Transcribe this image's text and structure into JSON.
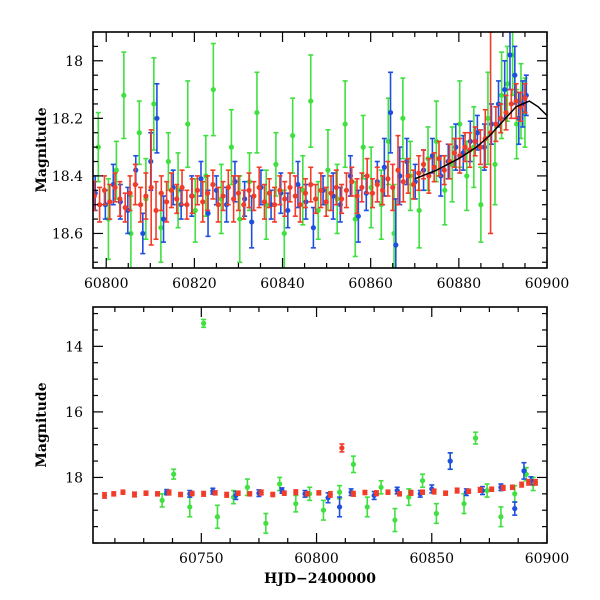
{
  "colors": {
    "blue": "#1f4fe0",
    "green": "#3fe03f",
    "red": "#f03c28",
    "model": "#000000"
  },
  "chart_data": [
    {
      "type": "scatter",
      "title": "",
      "xlabel": "",
      "ylabel": "Magnitude",
      "xlim": [
        60797,
        60900
      ],
      "ylim": [
        18.72,
        17.9
      ],
      "y_inverted": true,
      "xticks": [
        60800,
        60820,
        60840,
        60860,
        60880,
        60900
      ],
      "yticks": [
        18,
        18.2,
        18.4,
        18.6
      ],
      "xtick_labels": [
        "60800",
        "60820",
        "60840",
        "60860",
        "60880",
        "60900"
      ],
      "ytick_labels": [
        "18",
        "18.2",
        "18.4",
        "18.6"
      ],
      "grid": false,
      "series": [
        {
          "color": "blue",
          "x": [
            60797.5,
            60799.8,
            60801.6,
            60803.2,
            60804.9,
            60806.7,
            60808.3,
            60810.1,
            60811.5,
            60813.0,
            60815.2,
            60817.0,
            60819.4,
            60821.5,
            60823.1,
            60825.0,
            60827.3,
            60829.2,
            60831.4,
            60833.0,
            60835.1,
            60837.4,
            60839.6,
            60841.2,
            60843.5,
            60845.3,
            60847.0,
            60849.2,
            60851.5,
            60853.1,
            60855.4,
            60857.2,
            60859.0,
            60861.5,
            60863.1,
            60864.5,
            60865.7,
            60866.6,
            60868.2,
            60870.1,
            60872.0,
            60874.0,
            60875.9,
            60877.6,
            60879.3,
            60881.0,
            60882.6,
            60884.2,
            60885.8,
            60887.4,
            60889.0,
            60890.4,
            60891.6,
            60892.7,
            60893.6,
            60894.5,
            60895.3
          ],
          "y": [
            18.46,
            18.5,
            18.43,
            18.49,
            18.52,
            18.38,
            18.6,
            18.35,
            18.2,
            18.55,
            18.44,
            18.5,
            18.47,
            18.41,
            18.53,
            18.45,
            18.5,
            18.42,
            18.48,
            18.56,
            18.44,
            18.5,
            18.46,
            18.52,
            18.43,
            18.49,
            18.58,
            18.45,
            18.47,
            18.5,
            18.4,
            18.54,
            18.46,
            18.42,
            18.37,
            18.18,
            18.64,
            18.4,
            18.35,
            18.42,
            18.38,
            18.33,
            18.4,
            18.35,
            18.3,
            18.32,
            18.28,
            18.25,
            18.3,
            18.22,
            18.15,
            18.1,
            17.98,
            18.05,
            18.2,
            18.15,
            18.12
          ],
          "yerr": [
            0.06,
            0.05,
            0.07,
            0.06,
            0.08,
            0.05,
            0.07,
            0.1,
            0.12,
            0.08,
            0.06,
            0.05,
            0.07,
            0.06,
            0.08,
            0.05,
            0.06,
            0.07,
            0.06,
            0.09,
            0.06,
            0.05,
            0.07,
            0.06,
            0.08,
            0.06,
            0.07,
            0.05,
            0.08,
            0.06,
            0.07,
            0.09,
            0.06,
            0.07,
            0.1,
            0.14,
            0.16,
            0.1,
            0.08,
            0.06,
            0.07,
            0.06,
            0.07,
            0.06,
            0.08,
            0.06,
            0.07,
            0.06,
            0.08,
            0.07,
            0.08,
            0.1,
            0.12,
            0.1,
            0.09,
            0.08,
            0.07
          ]
        },
        {
          "color": "green",
          "x": [
            60798.2,
            60800.5,
            60802.3,
            60804.0,
            60805.6,
            60807.5,
            60809.0,
            60810.8,
            60812.4,
            60814.1,
            60816.3,
            60818.5,
            60820.2,
            60822.6,
            60824.3,
            60826.1,
            60828.4,
            60830.3,
            60832.5,
            60834.2,
            60836.3,
            60838.5,
            60840.4,
            60842.3,
            60844.6,
            60846.4,
            60848.1,
            60850.3,
            60852.4,
            60854.2,
            60856.5,
            60858.3,
            60860.1,
            60862.4,
            60864.0,
            60865.3,
            60867.3,
            60869.0,
            60871.0,
            60873.0,
            60874.9,
            60876.8,
            60878.5,
            60880.2,
            60881.8,
            60883.4,
            60885.0,
            60886.6,
            60888.2,
            60889.7,
            60891.0,
            60892.2,
            60893.1,
            60894.1,
            60895.0
          ],
          "y": [
            18.3,
            18.55,
            18.38,
            18.12,
            18.6,
            18.25,
            18.48,
            18.15,
            18.58,
            18.35,
            18.45,
            18.22,
            18.52,
            18.4,
            18.1,
            18.48,
            18.3,
            18.55,
            18.42,
            18.18,
            18.5,
            18.36,
            18.6,
            18.26,
            18.45,
            18.14,
            18.52,
            18.38,
            18.48,
            18.22,
            18.55,
            18.3,
            18.44,
            18.5,
            18.28,
            18.6,
            18.2,
            18.4,
            18.52,
            18.34,
            18.28,
            18.45,
            18.36,
            18.22,
            18.4,
            18.3,
            18.5,
            18.2,
            18.36,
            18.12,
            18.08,
            17.98,
            18.22,
            18.14,
            18.18
          ],
          "yerr": [
            0.12,
            0.14,
            0.1,
            0.15,
            0.13,
            0.11,
            0.14,
            0.16,
            0.12,
            0.1,
            0.13,
            0.15,
            0.11,
            0.14,
            0.16,
            0.12,
            0.13,
            0.15,
            0.1,
            0.14,
            0.12,
            0.11,
            0.15,
            0.13,
            0.12,
            0.16,
            0.1,
            0.14,
            0.12,
            0.15,
            0.13,
            0.11,
            0.14,
            0.12,
            0.15,
            0.17,
            0.14,
            0.12,
            0.13,
            0.11,
            0.14,
            0.12,
            0.13,
            0.15,
            0.12,
            0.14,
            0.13,
            0.16,
            0.14,
            0.15,
            0.13,
            0.14,
            0.12,
            0.13,
            0.12
          ]
        },
        {
          "color": "red",
          "x": [
            60797.3,
            60798.5,
            60799.6,
            60800.8,
            60802.0,
            60803.1,
            60804.3,
            60805.4,
            60806.6,
            60807.8,
            60809.0,
            60810.2,
            60811.3,
            60812.5,
            60813.7,
            60814.8,
            60816.0,
            60817.2,
            60818.3,
            60819.5,
            60820.7,
            60821.9,
            60823.0,
            60824.2,
            60825.4,
            60826.5,
            60827.7,
            60828.9,
            60830.0,
            60831.2,
            60832.4,
            60833.5,
            60834.7,
            60835.9,
            60837.0,
            60838.2,
            60839.4,
            60840.5,
            60841.7,
            60842.9,
            60844.0,
            60845.2,
            60846.4,
            60847.5,
            60848.7,
            60849.9,
            60851.0,
            60852.2,
            60853.4,
            60854.5,
            60855.7,
            60856.9,
            60858.0,
            60859.2,
            60860.4,
            60861.5,
            60862.7,
            60863.9,
            60865.0,
            60866.2,
            60867.4,
            60868.5,
            60869.7,
            60870.9,
            60872.0,
            60873.2,
            60874.4,
            60875.5,
            60876.7,
            60877.9,
            60879.0,
            60880.2,
            60881.4,
            60882.5,
            60883.7,
            60884.9,
            60886.0,
            60887.2,
            60888.4,
            60889.5,
            60890.7,
            60891.9,
            60893.0,
            60894.0,
            60895.0
          ],
          "y": [
            18.47,
            18.5,
            18.45,
            18.49,
            18.44,
            18.48,
            18.51,
            18.46,
            18.43,
            18.5,
            18.47,
            18.44,
            18.52,
            18.46,
            18.49,
            18.45,
            18.48,
            18.44,
            18.5,
            18.47,
            18.45,
            18.49,
            18.46,
            18.43,
            18.5,
            18.47,
            18.44,
            18.48,
            18.46,
            18.5,
            18.45,
            18.47,
            18.44,
            18.49,
            18.46,
            18.5,
            18.45,
            18.48,
            18.44,
            18.47,
            18.5,
            18.46,
            18.43,
            18.48,
            18.45,
            18.49,
            18.46,
            18.44,
            18.48,
            18.45,
            18.42,
            18.47,
            18.44,
            18.4,
            18.46,
            18.43,
            18.45,
            18.41,
            18.44,
            18.38,
            18.42,
            18.4,
            18.43,
            18.39,
            18.36,
            18.4,
            18.37,
            18.34,
            18.38,
            18.35,
            18.32,
            18.33,
            18.3,
            18.31,
            18.28,
            18.3,
            18.27,
            18.25,
            18.22,
            18.2,
            18.18,
            18.15,
            18.14,
            18.16,
            18.13
          ],
          "yerr": [
            0.05,
            0.06,
            0.05,
            0.06,
            0.05,
            0.06,
            0.05,
            0.06,
            0.07,
            0.06,
            0.08,
            0.2,
            0.1,
            0.06,
            0.07,
            0.06,
            0.05,
            0.06,
            0.05,
            0.06,
            0.05,
            0.07,
            0.06,
            0.05,
            0.06,
            0.05,
            0.06,
            0.08,
            0.06,
            0.05,
            0.06,
            0.05,
            0.07,
            0.06,
            0.05,
            0.06,
            0.05,
            0.06,
            0.05,
            0.07,
            0.06,
            0.05,
            0.06,
            0.05,
            0.06,
            0.05,
            0.06,
            0.06,
            0.05,
            0.06,
            0.05,
            0.06,
            0.05,
            0.06,
            0.05,
            0.06,
            0.05,
            0.06,
            0.08,
            0.12,
            0.07,
            0.06,
            0.05,
            0.06,
            0.05,
            0.06,
            0.05,
            0.06,
            0.05,
            0.06,
            0.05,
            0.06,
            0.05,
            0.06,
            0.05,
            0.06,
            0.1,
            0.35,
            0.06,
            0.05,
            0.06,
            0.05,
            0.06,
            0.05,
            0.05
          ]
        }
      ],
      "model_curve": {
        "x": [
          60870,
          60875,
          60880,
          60884,
          60887,
          60890,
          60893,
          60896,
          60898,
          60900
        ],
        "y": [
          18.41,
          18.38,
          18.34,
          18.3,
          18.26,
          18.21,
          18.16,
          18.14,
          18.16,
          18.19
        ]
      }
    },
    {
      "type": "scatter",
      "title": "",
      "xlabel": "HJD−2400000",
      "ylabel": "Magnitude",
      "xlim": [
        60703,
        60900
      ],
      "ylim": [
        20.0,
        12.8
      ],
      "y_inverted": true,
      "xticks": [
        60750,
        60800,
        60850,
        60900
      ],
      "yticks": [
        14,
        16,
        18
      ],
      "xtick_labels": [
        "60750",
        "60800",
        "60850",
        "60900"
      ],
      "ytick_labels": [
        "14",
        "16",
        "18"
      ],
      "grid": false,
      "series": [
        {
          "color": "blue",
          "x": [
            60735,
            60745,
            60755,
            60765,
            60775,
            60785,
            60795,
            60805,
            60810,
            60815,
            60825,
            60835,
            60845,
            60850,
            60858,
            60865,
            60872,
            60880,
            60886,
            60890,
            60893
          ],
          "y": [
            18.45,
            18.5,
            18.42,
            18.55,
            18.48,
            18.4,
            18.5,
            18.62,
            18.9,
            18.45,
            18.55,
            18.4,
            18.5,
            18.35,
            17.5,
            18.45,
            18.4,
            18.3,
            18.95,
            17.8,
            18.1
          ],
          "yerr": [
            0.08,
            0.1,
            0.09,
            0.12,
            0.1,
            0.08,
            0.1,
            0.15,
            0.3,
            0.1,
            0.12,
            0.1,
            0.1,
            0.12,
            0.25,
            0.1,
            0.12,
            0.1,
            0.2,
            0.25,
            0.12
          ]
        },
        {
          "color": "green",
          "x": [
            60733,
            60738,
            60745,
            60751,
            60757,
            60764,
            60770,
            60778,
            60784,
            60791,
            60797,
            60803,
            60810,
            60816,
            60822,
            60828,
            60834,
            60840,
            60846,
            60852,
            60858,
            60864,
            60869,
            60874,
            60880,
            60886,
            60891,
            60894
          ],
          "y": [
            18.7,
            17.9,
            18.9,
            13.3,
            19.2,
            18.6,
            18.3,
            19.4,
            18.2,
            18.8,
            18.5,
            19.0,
            18.45,
            17.6,
            18.9,
            18.3,
            19.3,
            18.6,
            18.1,
            19.1,
            17.5,
            18.8,
            16.8,
            18.4,
            19.2,
            18.5,
            17.9,
            18.2
          ],
          "yerr": [
            0.2,
            0.15,
            0.3,
            0.12,
            0.35,
            0.2,
            0.25,
            0.3,
            0.2,
            0.25,
            0.2,
            0.3,
            0.2,
            0.25,
            0.3,
            0.2,
            0.35,
            0.25,
            0.2,
            0.3,
            0.25,
            0.3,
            0.18,
            0.2,
            0.3,
            0.25,
            0.2,
            0.2
          ]
        },
        {
          "color": "red",
          "x": [
            60708,
            60712,
            60716,
            60721,
            60726,
            60731,
            60736,
            60741,
            60746,
            60751,
            60756,
            60761,
            60766,
            60771,
            60776,
            60781,
            60786,
            60791,
            60796,
            60801,
            60806,
            60811,
            60816,
            60821,
            60826,
            60831,
            60836,
            60841,
            60846,
            60851,
            60856,
            60861,
            60866,
            60871,
            60876,
            60881,
            60885,
            60889,
            60892,
            60895
          ],
          "y": [
            18.55,
            18.5,
            18.45,
            18.52,
            18.48,
            18.5,
            18.46,
            18.52,
            18.49,
            18.5,
            18.47,
            18.53,
            18.48,
            18.5,
            18.46,
            18.52,
            18.48,
            18.45,
            18.5,
            18.47,
            18.52,
            17.1,
            18.5,
            18.46,
            18.48,
            18.45,
            18.5,
            18.47,
            18.45,
            18.43,
            18.48,
            18.4,
            18.42,
            18.38,
            18.36,
            18.32,
            18.3,
            18.22,
            18.15,
            18.15
          ],
          "yerr": [
            0.08,
            0.06,
            0.06,
            0.07,
            0.06,
            0.06,
            0.07,
            0.06,
            0.06,
            0.07,
            0.06,
            0.07,
            0.06,
            0.06,
            0.07,
            0.06,
            0.06,
            0.07,
            0.06,
            0.06,
            0.08,
            0.12,
            0.07,
            0.06,
            0.07,
            0.06,
            0.06,
            0.07,
            0.06,
            0.07,
            0.06,
            0.07,
            0.06,
            0.07,
            0.06,
            0.07,
            0.06,
            0.07,
            0.08,
            0.08
          ]
        }
      ]
    }
  ]
}
